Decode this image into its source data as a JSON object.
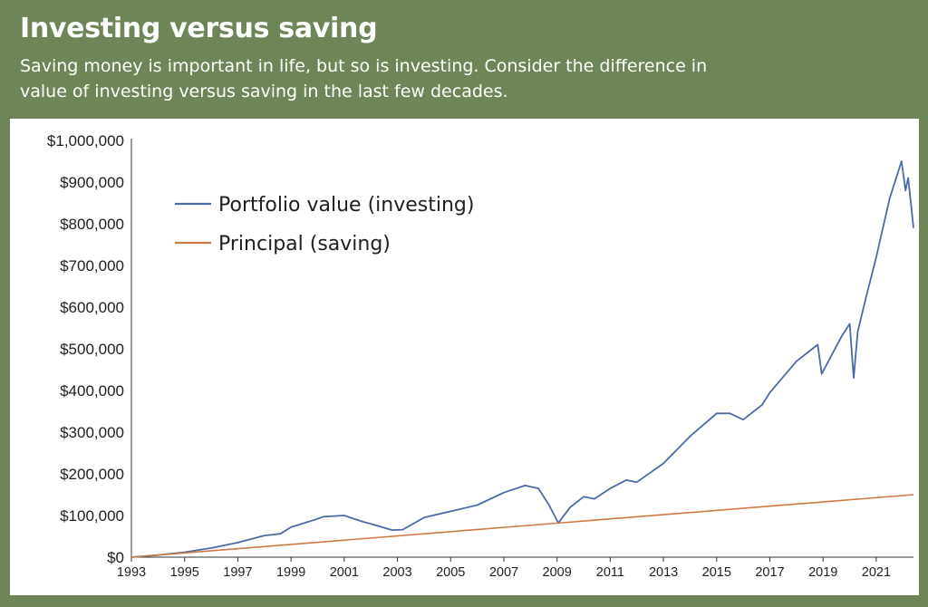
{
  "header": {
    "title": "Investing versus saving",
    "subtitle": "Saving money is important in life, but so is investing. Consider the difference in value of investing versus saving in the last few decades."
  },
  "chart_data": {
    "type": "line",
    "title": "",
    "xlabel": "",
    "ylabel": "",
    "xlim": [
      1993,
      2022.4
    ],
    "ylim": [
      0,
      1000000
    ],
    "x_ticks": [
      "1993",
      "1995",
      "1997",
      "1999",
      "2001",
      "2003",
      "2005",
      "2007",
      "2009",
      "2011",
      "2013",
      "2015",
      "2017",
      "2019",
      "2021"
    ],
    "y_ticks": [
      "$0",
      "$100,000",
      "$200,000",
      "$300,000",
      "$400,000",
      "$500,000",
      "$600,000",
      "$700,000",
      "$800,000",
      "$900,000",
      "$1,000,000"
    ],
    "legend_position": "top-left",
    "grid": false,
    "series": [
      {
        "name": "Portfolio value (investing)",
        "color": "#4a6aa8",
        "x": [
          1993,
          1994,
          1995,
          1996,
          1997,
          1998,
          1998.6,
          1999,
          2000,
          2000.2,
          2001,
          2001.7,
          2002,
          2002.8,
          2003.2,
          2004,
          2005,
          2006,
          2007,
          2007.8,
          2008.3,
          2008.7,
          2009.05,
          2009.2,
          2009.5,
          2010,
          2010.4,
          2011,
          2011.6,
          2012,
          2013,
          2014,
          2015,
          2015.5,
          2016,
          2016.7,
          2017,
          2018,
          2018.8,
          2018.95,
          2019.2,
          2019.7,
          2020,
          2020.15,
          2020.3,
          2020.6,
          2021,
          2021.5,
          2021.95,
          2022.1,
          2022.2,
          2022.3,
          2022.4
        ],
        "y": [
          0,
          5000,
          12000,
          22000,
          35000,
          52000,
          56000,
          72000,
          92000,
          97000,
          100000,
          85000,
          80000,
          65000,
          66000,
          95000,
          110000,
          125000,
          155000,
          172000,
          165000,
          125000,
          82000,
          95000,
          120000,
          145000,
          140000,
          165000,
          185000,
          180000,
          225000,
          290000,
          345000,
          345000,
          330000,
          365000,
          395000,
          470000,
          510000,
          440000,
          470000,
          530000,
          560000,
          430000,
          540000,
          620000,
          720000,
          860000,
          950000,
          880000,
          910000,
          850000,
          790000
        ]
      },
      {
        "name": "Principal (saving)",
        "color": "#d07a43",
        "x": [
          1993,
          2022.4
        ],
        "y": [
          0,
          150000
        ]
      }
    ]
  }
}
